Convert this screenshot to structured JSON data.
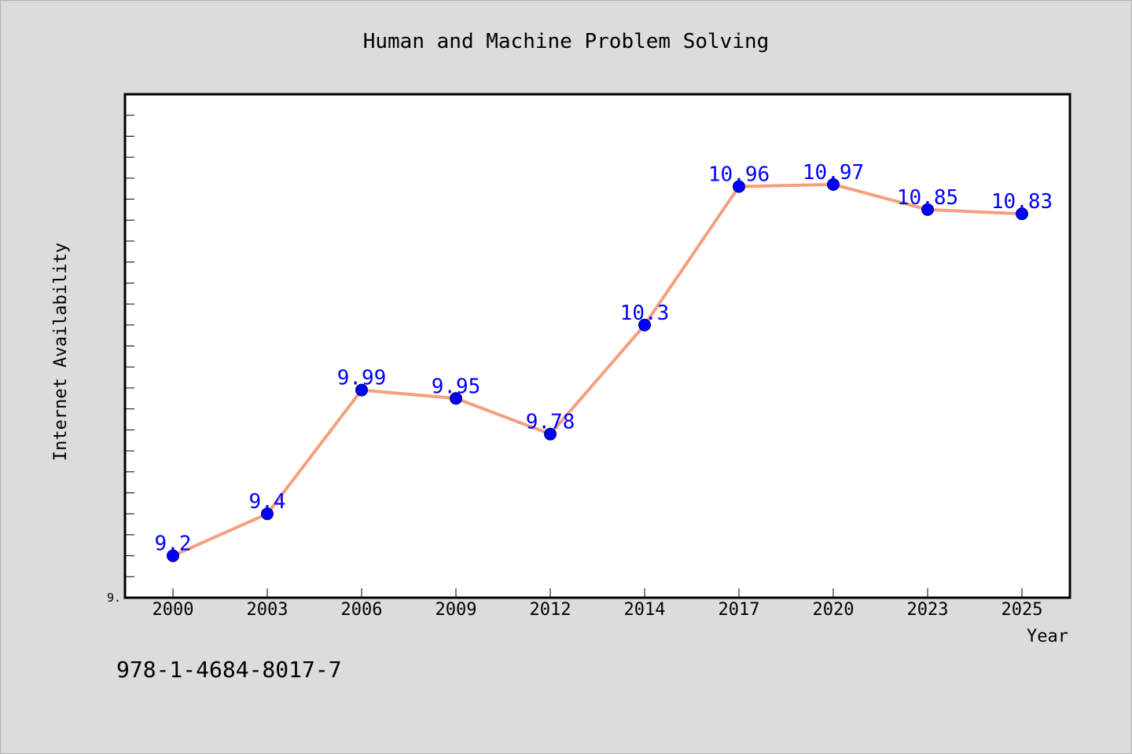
{
  "chart_data": {
    "type": "line",
    "title": "Human and Machine Problem Solving",
    "xlabel": "Year",
    "ylabel": "Internet Availability",
    "categories": [
      "2000",
      "2003",
      "2006",
      "2009",
      "2012",
      "2014",
      "2017",
      "2020",
      "2023",
      "2025"
    ],
    "series": [
      {
        "values": [
          9.2,
          9.4,
          9.99,
          9.95,
          9.78,
          10.3,
          10.96,
          10.97,
          10.85,
          10.83
        ]
      }
    ],
    "data_labels": [
      "9.2",
      "9.4",
      "9.99",
      "9.95",
      "9.78",
      "10.3",
      "10.96",
      "10.97",
      "10.85",
      "10.83"
    ],
    "ylim": [
      9.0,
      11.4
    ],
    "y_tick_label": "9.",
    "grid": false,
    "line_color": "#f4a07e",
    "marker_color": "#0000ff",
    "label_color": "#0000ff"
  },
  "footer": {
    "isbn": "978-1-4684-8017-7"
  }
}
